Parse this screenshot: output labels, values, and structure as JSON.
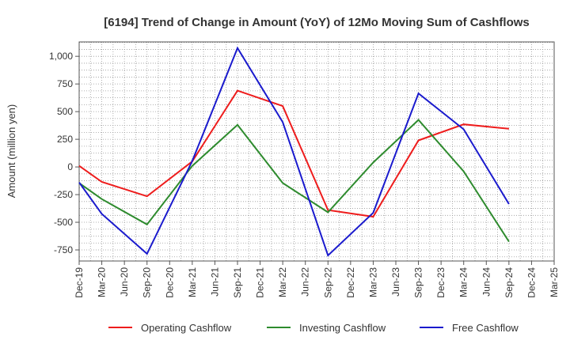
{
  "chart_data": {
    "type": "line",
    "title": "[6194]  Trend of Change in Amount (YoY) of 12Mo Moving Sum of Cashflows",
    "xlabel": "",
    "ylabel": "Amount (million yen)",
    "ylim": [
      -850,
      1130
    ],
    "yticks": [
      1000,
      750,
      500,
      250,
      0,
      -250,
      -500,
      -750
    ],
    "ytick_labels": [
      "1,000",
      "750",
      "500",
      "250",
      "0",
      "-250",
      "-500",
      "-750"
    ],
    "categories": [
      "Dec-19",
      "Mar-20",
      "Jun-20",
      "Sep-20",
      "Dec-20",
      "Mar-21",
      "Jun-21",
      "Sep-21",
      "Dec-21",
      "Mar-22",
      "Jun-22",
      "Sep-22",
      "Dec-22",
      "Mar-23",
      "Jun-23",
      "Sep-23",
      "Dec-23",
      "Mar-24",
      "Jun-24",
      "Sep-24",
      "Dec-24",
      "Mar-25"
    ],
    "grid": true,
    "legend_position": "bottom",
    "series": [
      {
        "name": "Operating Cashflow",
        "color": "#ee1c1c",
        "points": [
          {
            "x": "Dec-19",
            "y": 10
          },
          {
            "x": "Mar-20",
            "y": -135
          },
          {
            "x": "Sep-20",
            "y": -265
          },
          {
            "x": "Mar-21",
            "y": 50
          },
          {
            "x": "Sep-21",
            "y": 690
          },
          {
            "x": "Mar-22",
            "y": 550
          },
          {
            "x": "Sep-22",
            "y": -390
          },
          {
            "x": "Mar-23",
            "y": -450
          },
          {
            "x": "Sep-23",
            "y": 240
          },
          {
            "x": "Mar-24",
            "y": 385
          },
          {
            "x": "Sep-24",
            "y": 345
          }
        ]
      },
      {
        "name": "Investing Cashflow",
        "color": "#2e8b2e",
        "points": [
          {
            "x": "Dec-19",
            "y": -145
          },
          {
            "x": "Mar-20",
            "y": -290
          },
          {
            "x": "Sep-20",
            "y": -520
          },
          {
            "x": "Mar-21",
            "y": 10
          },
          {
            "x": "Sep-21",
            "y": 380
          },
          {
            "x": "Mar-22",
            "y": -145
          },
          {
            "x": "Sep-22",
            "y": -410
          },
          {
            "x": "Mar-23",
            "y": 40
          },
          {
            "x": "Sep-23",
            "y": 425
          },
          {
            "x": "Mar-24",
            "y": -40
          },
          {
            "x": "Sep-24",
            "y": -675
          }
        ]
      },
      {
        "name": "Free Cashflow",
        "color": "#1a1acd",
        "points": [
          {
            "x": "Dec-19",
            "y": -140
          },
          {
            "x": "Mar-20",
            "y": -425
          },
          {
            "x": "Sep-20",
            "y": -785
          },
          {
            "x": "Mar-21",
            "y": 55
          },
          {
            "x": "Sep-21",
            "y": 1075
          },
          {
            "x": "Mar-22",
            "y": 405
          },
          {
            "x": "Sep-22",
            "y": -800
          },
          {
            "x": "Mar-23",
            "y": -415
          },
          {
            "x": "Sep-23",
            "y": 665
          },
          {
            "x": "Mar-24",
            "y": 340
          },
          {
            "x": "Sep-24",
            "y": -335
          }
        ]
      }
    ]
  }
}
